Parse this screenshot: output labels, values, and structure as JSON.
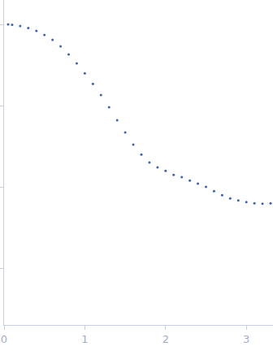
{
  "chart_data": {
    "type": "scatter",
    "marker": "circle",
    "color": "#3a63b5",
    "x": [
      0.05,
      0.1,
      0.2,
      0.3,
      0.4,
      0.5,
      0.6,
      0.7,
      0.8,
      0.9,
      1.0,
      1.1,
      1.2,
      1.3,
      1.4,
      1.5,
      1.6,
      1.7,
      1.8,
      1.9,
      2.0,
      2.1,
      2.2,
      2.3,
      2.4,
      2.5,
      2.6,
      2.7,
      2.8,
      2.9,
      3.0,
      3.1,
      3.2,
      3.3
    ],
    "values": [
      1,
      0.989,
      0.955,
      0.902,
      0.832,
      0.741,
      0.646,
      0.537,
      0.427,
      0.331,
      0.251,
      0.186,
      0.135,
      0.0955,
      0.0661,
      0.0468,
      0.0331,
      0.0251,
      0.02,
      0.0174,
      0.0158,
      0.0141,
      0.0132,
      0.012,
      0.011,
      0.01,
      0.0089,
      0.0079,
      0.0072,
      0.0068,
      0.0065,
      0.0063,
      0.0062,
      0.0063
    ],
    "xlim": [
      0,
      3.33
    ],
    "xticks": [
      0,
      1,
      2,
      3
    ],
    "ylim": [
      0.0002,
      2
    ],
    "yticks": [
      0.001,
      0.01,
      0.1,
      1
    ],
    "log": "y",
    "grid": false,
    "tick_labels": "x"
  }
}
